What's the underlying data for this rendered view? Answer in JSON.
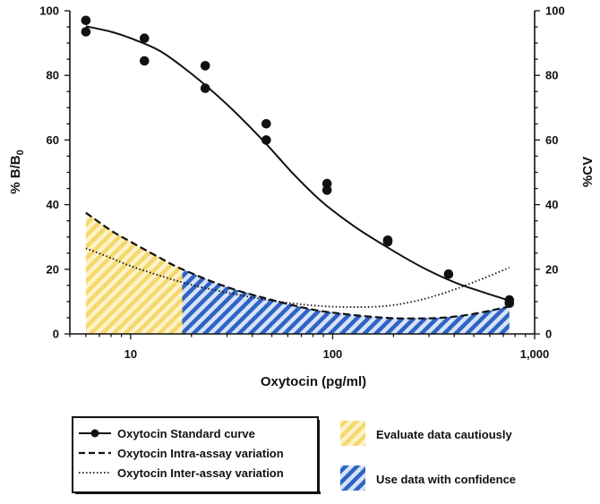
{
  "chart_data": {
    "type": "line",
    "x_scale": "log",
    "xlim": [
      5,
      1000
    ],
    "ylim": [
      0,
      100
    ],
    "y2lim": [
      0,
      100
    ],
    "xlabel": "Oxytocin (pg/ml)",
    "ylabel_main": "% B/B",
    "ylabel_sub": "0",
    "y2label": "%CV",
    "x_ticks": [
      10,
      100,
      1000
    ],
    "x_tick_labels": [
      "10",
      "100",
      "1,000"
    ],
    "y_ticks": [
      0,
      20,
      40,
      60,
      80,
      100
    ],
    "y_tick_labels": [
      "0",
      "20",
      "40",
      "60",
      "80",
      "100"
    ],
    "series": [
      {
        "name": "Oxytocin Standard curve",
        "style": "solid-with-markers",
        "points": [
          [
            6,
            97
          ],
          [
            6,
            93.5
          ],
          [
            11.7,
            91.5
          ],
          [
            11.7,
            84.5
          ],
          [
            23.4,
            83
          ],
          [
            23.4,
            76
          ],
          [
            46.9,
            65
          ],
          [
            46.9,
            60
          ],
          [
            93.8,
            46.5
          ],
          [
            93.8,
            44.5
          ],
          [
            187.5,
            29
          ],
          [
            187.5,
            28.5
          ],
          [
            375,
            18.5
          ],
          [
            750,
            10.5
          ],
          [
            750,
            9.5
          ]
        ],
        "fit": [
          [
            6,
            95.2
          ],
          [
            8,
            93.5
          ],
          [
            10,
            91.5
          ],
          [
            14,
            87.5
          ],
          [
            20,
            80.5
          ],
          [
            30,
            71
          ],
          [
            45,
            60
          ],
          [
            65,
            49
          ],
          [
            90,
            40.5
          ],
          [
            130,
            33
          ],
          [
            190,
            26.5
          ],
          [
            280,
            20.5
          ],
          [
            400,
            16
          ],
          [
            550,
            13
          ],
          [
            750,
            10.3
          ]
        ]
      },
      {
        "name": "Oxytocin Intra-assay variation",
        "style": "dashed",
        "points": [
          [
            6,
            37.5
          ],
          [
            8,
            32
          ],
          [
            10,
            28.5
          ],
          [
            14,
            23.5
          ],
          [
            18,
            20
          ],
          [
            30,
            14.5
          ],
          [
            50,
            10.5
          ],
          [
            80,
            7.5
          ],
          [
            120,
            6
          ],
          [
            180,
            5
          ],
          [
            250,
            4.8
          ],
          [
            350,
            5
          ],
          [
            500,
            6.2
          ],
          [
            750,
            8.5
          ]
        ]
      },
      {
        "name": "Oxytocin Inter-assay variation",
        "style": "dotted",
        "points": [
          [
            6,
            26.5
          ],
          [
            8,
            23.5
          ],
          [
            10,
            21
          ],
          [
            14,
            18
          ],
          [
            20,
            15.2
          ],
          [
            30,
            12.8
          ],
          [
            50,
            10.3
          ],
          [
            80,
            8.8
          ],
          [
            120,
            8.3
          ],
          [
            180,
            8.6
          ],
          [
            250,
            10
          ],
          [
            350,
            12.5
          ],
          [
            500,
            16
          ],
          [
            750,
            20.5
          ]
        ]
      }
    ],
    "shaded_regions": [
      {
        "name": "Evaluate data cautiously",
        "color": "#f5d76e",
        "pattern": "hatched",
        "x_from": 6,
        "x_to": 18
      },
      {
        "name": "Use data with confidence",
        "color": "#2f64c4",
        "pattern": "hatched",
        "x_from": 18,
        "x_to": 750
      }
    ],
    "legend": {
      "placement": "bottom",
      "line_entries": [
        "Oxytocin Standard curve",
        "Oxytocin Intra-assay variation",
        "Oxytocin Inter-assay variation"
      ],
      "area_entries": [
        "Evaluate data cautiously",
        "Use data with confidence"
      ]
    }
  }
}
